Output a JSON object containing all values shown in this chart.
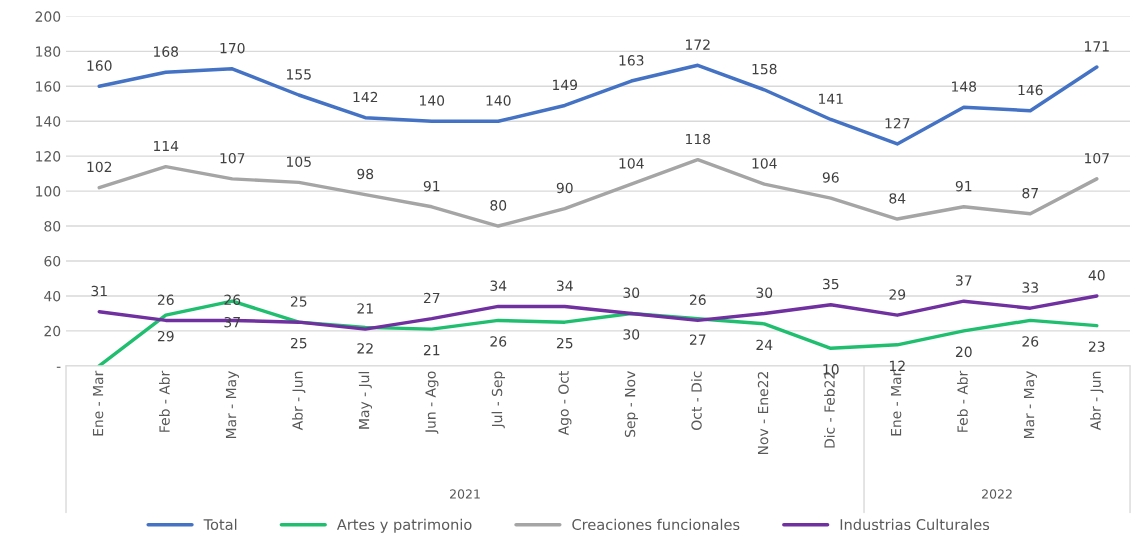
{
  "chart_data": {
    "type": "line",
    "categories": [
      "Ene - Mar",
      "Feb - Abr",
      "Mar - May",
      "Abr - Jun",
      "May - Jul",
      "Jun - Ago",
      "Jul - Sep",
      "Ago - Oct",
      "Sep - Nov",
      "Oct - Dic",
      "Nov - Ene22",
      "Dic - Feb22",
      "Ene - Mar",
      "Feb - Abr",
      "Mar - May",
      "Abr - Jun"
    ],
    "annotations": [
      "2021",
      "2022"
    ],
    "series": [
      {
        "name": "Total",
        "color": "#4472c4",
        "values": [
          160,
          168,
          170,
          155,
          142,
          140,
          140,
          149,
          163,
          172,
          158,
          141,
          127,
          148,
          146,
          171
        ]
      },
      {
        "name": "Artes y patrimonio",
        "color": "#1fbf6f",
        "values": [
          0,
          29,
          37,
          25,
          22,
          21,
          26,
          25,
          30,
          27,
          24,
          10,
          12,
          20,
          26,
          23
        ],
        "value_labels": [
          null,
          "29",
          "37",
          "25",
          "22",
          "21",
          "26",
          "25",
          "30",
          "27",
          "24",
          "10",
          "12",
          "20",
          "26",
          "23"
        ]
      },
      {
        "name": "Creaciones funcionales",
        "color": "#a5a5a5",
        "values": [
          102,
          114,
          107,
          105,
          98,
          91,
          80,
          90,
          104,
          118,
          104,
          96,
          84,
          91,
          87,
          107
        ]
      },
      {
        "name": "Industrias Culturales",
        "color": "#7030a0",
        "values": [
          31,
          26,
          26,
          25,
          21,
          27,
          34,
          34,
          30,
          26,
          30,
          35,
          29,
          37,
          33,
          40
        ]
      }
    ],
    "ylim": [
      0,
      200
    ],
    "yticks": [
      {
        "value": 0,
        "label": "-"
      },
      20,
      40,
      60,
      80,
      100,
      120,
      140,
      160,
      180,
      200
    ],
    "grid": "y",
    "legend": "bottom",
    "data_labels": true,
    "marker": "none",
    "line_style": "solid"
  }
}
